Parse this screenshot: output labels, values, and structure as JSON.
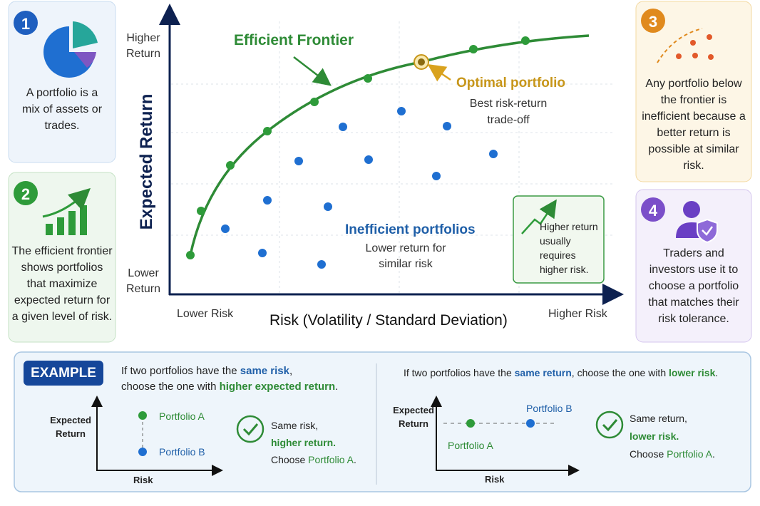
{
  "cards": [
    {
      "number": "1",
      "text": "A portfolio is a mix of assets or trades."
    },
    {
      "number": "2",
      "text": "The efficient frontier shows portfolios that maximize expected return for a given level of risk."
    },
    {
      "number": "3",
      "text": "Any portfolio below the frontier is inefficient because a better return is possible at similar risk."
    },
    {
      "number": "4",
      "text": "Traders and investors use it to choose a portfolio that matches their risk tolerance."
    }
  ],
  "chart": {
    "y_axis_label": "Expected Return",
    "x_axis_label": "Risk (Volatility / Standard Deviation)",
    "y_high": "Higher Return",
    "y_low": "Lower Return",
    "x_low": "Lower Risk",
    "x_high": "Higher Risk",
    "frontier_label": "Efficient Frontier",
    "optimal_title": "Optimal portfolio",
    "optimal_text": "Best risk-return trade-off",
    "inefficient_title": "Inefficient portfolios",
    "inefficient_text": "Lower return for similar risk",
    "note": "Higher return usually requires higher risk."
  },
  "example": {
    "badge": "EXAMPLE",
    "left": {
      "intro": [
        "If two portfolios have the ",
        "same risk",
        ",",
        "choose the one with ",
        "higher expected return",
        "."
      ],
      "y_label": "Expected Return",
      "x_label": "Risk",
      "portfolio_a": "Portfolio A",
      "portfolio_b": "Portfolio B",
      "verdict": [
        "Same risk,",
        "higher return.",
        "Choose ",
        "Portfolio A",
        "."
      ]
    },
    "right": {
      "intro": [
        "If two portfolios have the ",
        "same return",
        ", choose the one with ",
        "lower risk",
        "."
      ],
      "y_label": "Expected Return",
      "x_label": "Risk",
      "portfolio_a": "Portfolio A",
      "portfolio_b": "Portfolio B",
      "verdict": [
        "Same return,",
        "lower risk.",
        "Choose ",
        "Portfolio A",
        "."
      ]
    }
  }
}
